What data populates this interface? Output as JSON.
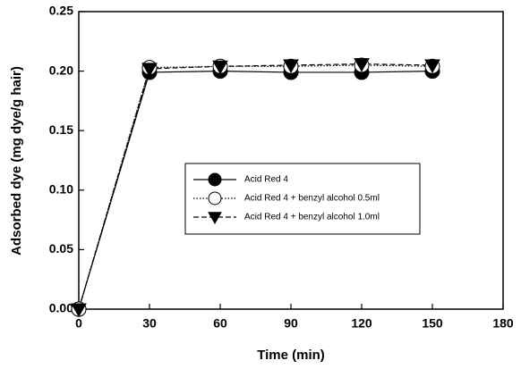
{
  "chart_data": {
    "type": "line",
    "x_label": "Time (min)",
    "y_label": "Adsorbed dye (mg dye/g hair)",
    "x": [
      0,
      30,
      60,
      90,
      120,
      150
    ],
    "series": [
      {
        "name": "Acid Red 4",
        "color": "#000000",
        "marker": "circle-filled",
        "line_style": "solid",
        "values": [
          0,
          0.199,
          0.2,
          0.199,
          0.199,
          0.2
        ]
      },
      {
        "name": "Acid Red 4 + benzyl alcohol 0.5ml",
        "color": "#000000",
        "marker": "circle-open",
        "line_style": "dotted",
        "values": [
          0,
          0.203,
          0.204,
          0.204,
          0.205,
          0.204
        ]
      },
      {
        "name": "Acid Red 4 + benzyl alcohol 1.0ml",
        "color": "#000000",
        "marker": "triangle-down-filled",
        "line_style": "dashed",
        "values": [
          0,
          0.202,
          0.204,
          0.205,
          0.206,
          0.205
        ]
      }
    ],
    "xlim": [
      0,
      180
    ],
    "xticks": [
      0,
      30,
      60,
      90,
      120,
      150,
      180
    ],
    "ylim": [
      0,
      0.25
    ],
    "yticks": [
      {
        "value": 0,
        "label": "0.00"
      },
      {
        "value": 0.05,
        "label": "0.05"
      },
      {
        "value": 0.1,
        "label": "0.10"
      },
      {
        "value": 0.15,
        "label": "0.15"
      },
      {
        "value": 0.2,
        "label": "0.20"
      },
      {
        "value": 0.25,
        "label": "0.25"
      }
    ],
    "grid": false
  }
}
